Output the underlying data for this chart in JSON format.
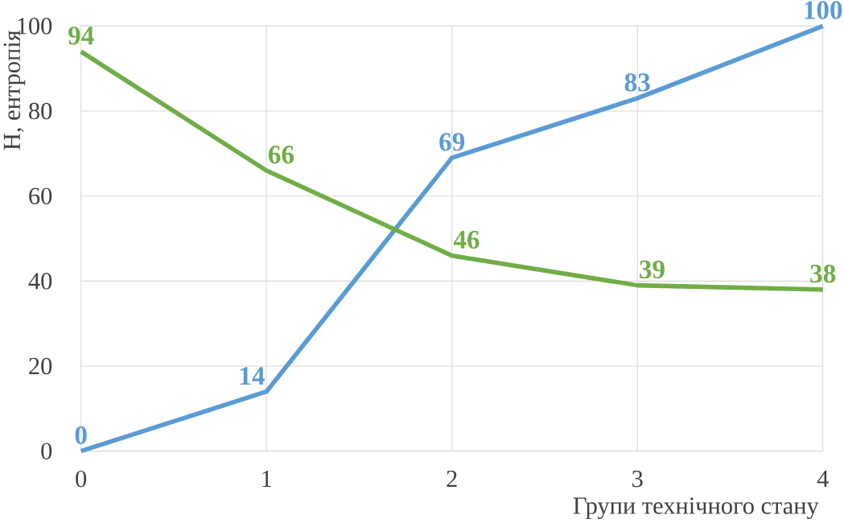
{
  "chart_data": {
    "type": "line",
    "xlabel": "Групи технічного стану",
    "ylabel": "H, ентропія",
    "x": [
      0,
      1,
      2,
      3,
      4
    ],
    "series": [
      {
        "color": "#5b9bd5",
        "values": [
          0,
          14,
          69,
          83,
          100
        ]
      },
      {
        "color": "#70ad47",
        "values": [
          94,
          66,
          46,
          39,
          38
        ]
      }
    ],
    "xlim": [
      0,
      4
    ],
    "xticks": [
      0,
      1,
      2,
      3,
      4
    ],
    "ylim": [
      0,
      100
    ],
    "yticks": [
      0,
      20,
      40,
      60,
      80,
      100
    ],
    "grid": true,
    "data_labels": true,
    "marker": "none",
    "line_style": "solid"
  }
}
